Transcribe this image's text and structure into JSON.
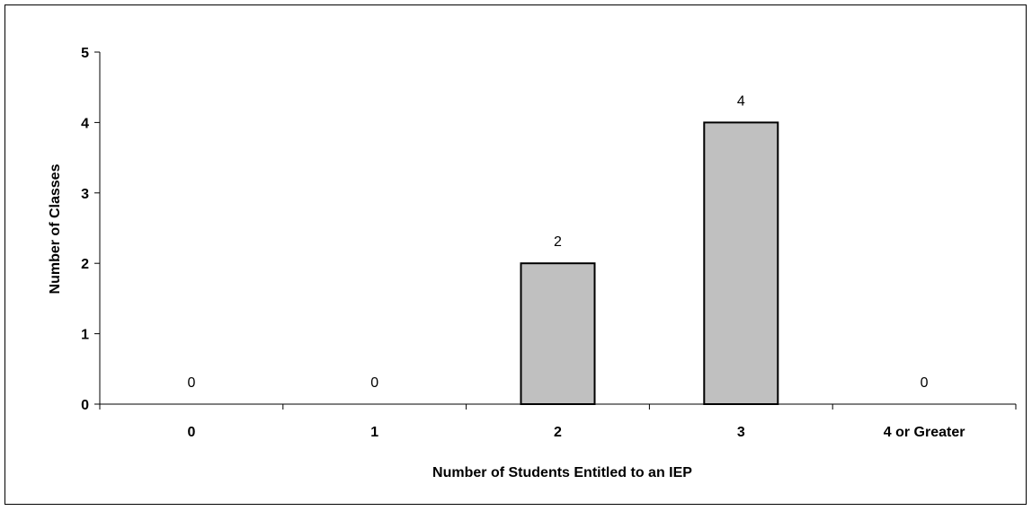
{
  "chart_data": {
    "type": "bar",
    "title": "",
    "xlabel": "Number of Students Entitled to an IEP",
    "ylabel": "Number of Classes",
    "categories": [
      "0",
      "1",
      "2",
      "3",
      "4 or Greater"
    ],
    "values": [
      0,
      0,
      2,
      4,
      0
    ],
    "data_labels": [
      "0",
      "0",
      "2",
      "4",
      "0"
    ],
    "ylim": [
      0,
      5
    ],
    "yticks": [
      "0",
      "1",
      "2",
      "3",
      "4",
      "5"
    ],
    "grid": false,
    "legend": "none",
    "colors": {
      "bar_fill": "#c0c0c0",
      "bar_stroke": "#000000",
      "axis": "#000000"
    }
  }
}
